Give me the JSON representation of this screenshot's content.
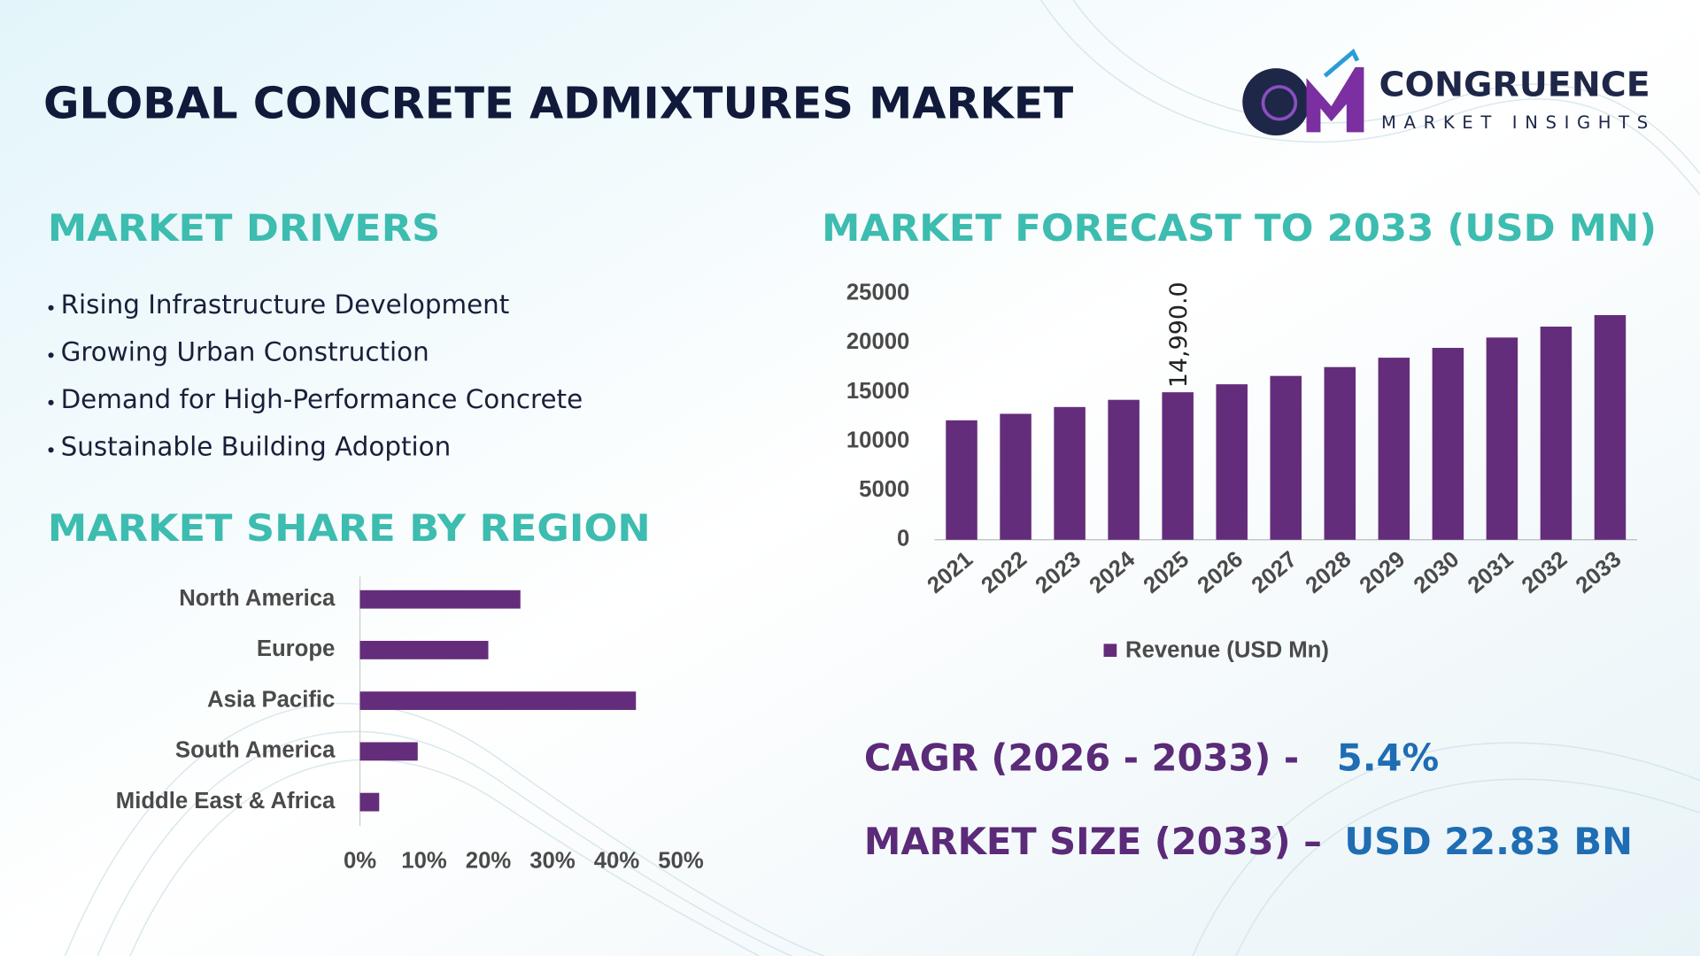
{
  "header": {
    "title": "GLOBAL CONCRETE ADMIXTURES MARKET",
    "logo": {
      "name": "CONGRUENCE",
      "tagline": "MARKET INSIGHTS"
    }
  },
  "drivers": {
    "title": "MARKET DRIVERS",
    "items": [
      "Rising Infrastructure Development",
      "Growing Urban Construction",
      "Demand for High-Performance Concrete",
      "Sustainable Building Adoption"
    ]
  },
  "chart_data": [
    {
      "type": "bar",
      "title": "MARKET FORECAST TO 2033 (USD MN)",
      "categories": [
        "2021",
        "2022",
        "2023",
        "2024",
        "2025",
        "2026",
        "2027",
        "2028",
        "2029",
        "2030",
        "2031",
        "2032",
        "2033"
      ],
      "series": [
        {
          "name": "Revenue (USD Mn)",
          "color": "#642d7b",
          "values": [
            12140,
            12800,
            13490,
            14220,
            14990,
            15800,
            16650,
            17550,
            18500,
            19500,
            20550,
            21660,
            22830
          ],
          "value_labels": [
            null,
            null,
            null,
            null,
            "14,990.0",
            null,
            null,
            null,
            null,
            null,
            null,
            null,
            null
          ]
        }
      ],
      "ylim": [
        0,
        25000
      ],
      "yticks": [
        0,
        5000,
        10000,
        15000,
        20000,
        25000
      ],
      "grid": false,
      "legend": "bottom"
    },
    {
      "type": "hbar",
      "title": "MARKET SHARE BY REGION",
      "categories": [
        "North America",
        "Europe",
        "Asia Pacific",
        "South America",
        "Middle East & Africa"
      ],
      "values": [
        25,
        20,
        43,
        9,
        3
      ],
      "color": "#642d7b",
      "xlim": [
        0,
        50
      ],
      "xticks": [
        {
          "value": 0,
          "label": "0%"
        },
        {
          "value": 10,
          "label": "10%"
        },
        {
          "value": 20,
          "label": "20%"
        },
        {
          "value": 30,
          "label": "30%"
        },
        {
          "value": 40,
          "label": "40%"
        },
        {
          "value": 50,
          "label": "50%"
        }
      ],
      "grid": false
    }
  ],
  "highlights": [
    {
      "label": "CAGR (2026 - 2033) -",
      "value": "5.4%"
    },
    {
      "label": "MARKET SIZE (2033) –",
      "value": "USD 22.83 BN"
    }
  ]
}
